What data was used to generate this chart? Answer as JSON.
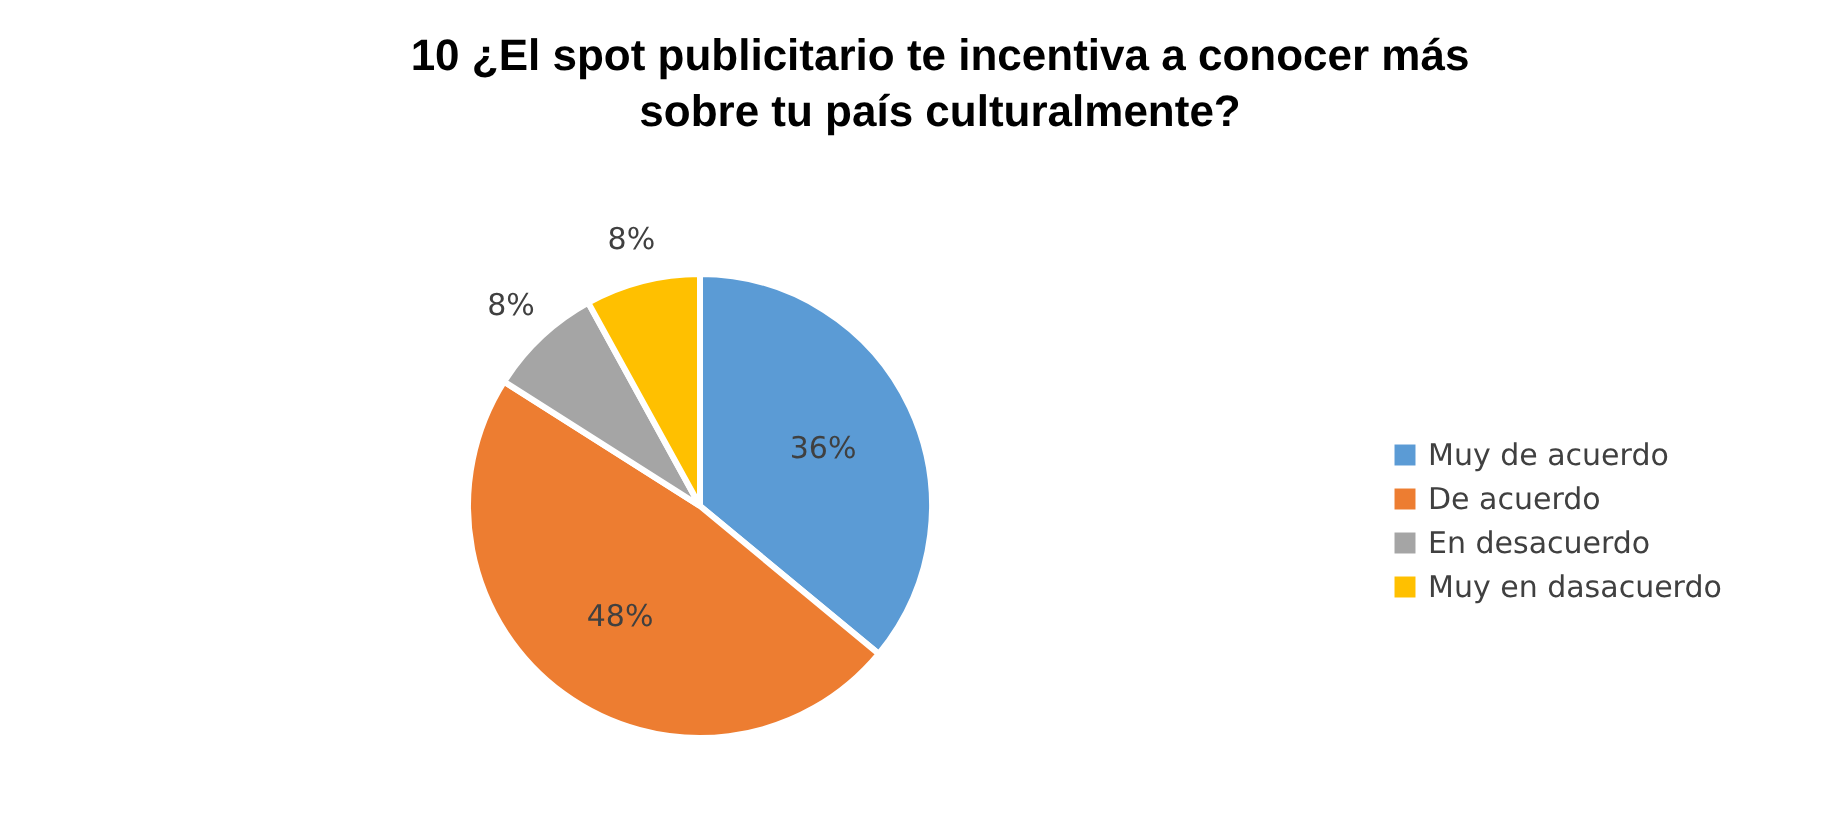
{
  "chart_data": {
    "type": "pie",
    "title": "10 ¿El spot publicitario te incentiva a conocer más sobre tu país culturalmente?",
    "categories": [
      "Muy de acuerdo",
      "De acuerdo",
      "En desacuerdo",
      "Muy en dasacuerdo"
    ],
    "values": [
      36,
      48,
      8,
      8
    ],
    "colors": [
      "#5b9bd5",
      "#ed7d31",
      "#a5a5a5",
      "#ffc000"
    ],
    "value_labels": [
      "36%",
      "48%",
      "8%",
      "8%"
    ],
    "legend": "right"
  }
}
